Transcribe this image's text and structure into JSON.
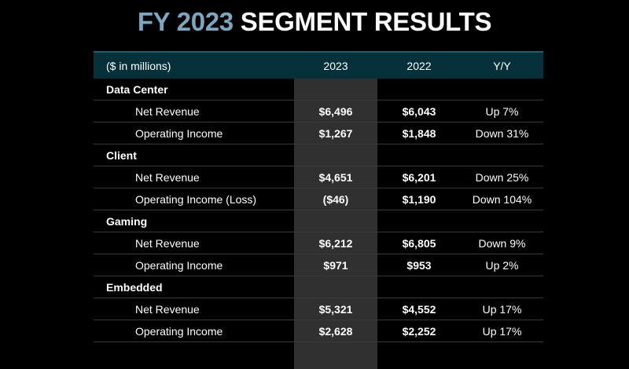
{
  "title": {
    "accent": "FY 2023",
    "rest": "SEGMENT RESULTS"
  },
  "table": {
    "headers": {
      "label": "($ in millions)",
      "col_2023": "2023",
      "col_2022": "2022",
      "col_yy": "Y/Y"
    },
    "segments": [
      {
        "name": "Data Center",
        "rows": [
          {
            "label": "Net Revenue",
            "v2023": "$6,496",
            "v2022": "$6,043",
            "yy": "Up 7%"
          },
          {
            "label": "Operating Income",
            "v2023": "$1,267",
            "v2022": "$1,848",
            "yy": "Down 31%"
          }
        ]
      },
      {
        "name": "Client",
        "rows": [
          {
            "label": "Net Revenue",
            "v2023": "$4,651",
            "v2022": "$6,201",
            "yy": "Down 25%"
          },
          {
            "label": "Operating Income (Loss)",
            "v2023": "($46)",
            "v2022": "$1,190",
            "yy": "Down 104%"
          }
        ]
      },
      {
        "name": "Gaming",
        "rows": [
          {
            "label": "Net Revenue",
            "v2023": "$6,212",
            "v2022": "$6,805",
            "yy": "Down 9%"
          },
          {
            "label": "Operating Income",
            "v2023": "$971",
            "v2022": "$953",
            "yy": "Up 2%"
          }
        ]
      },
      {
        "name": "Embedded",
        "rows": [
          {
            "label": "Net Revenue",
            "v2023": "$5,321",
            "v2022": "$4,552",
            "yy": "Up 17%"
          },
          {
            "label": "Operating Income",
            "v2023": "$2,628",
            "v2022": "$2,252",
            "yy": "Up 17%"
          }
        ]
      }
    ]
  },
  "colors": {
    "background": "#000000",
    "title_accent": "#7aa6bf",
    "header_bg": "#06303a",
    "highlight_column": "#303030"
  }
}
